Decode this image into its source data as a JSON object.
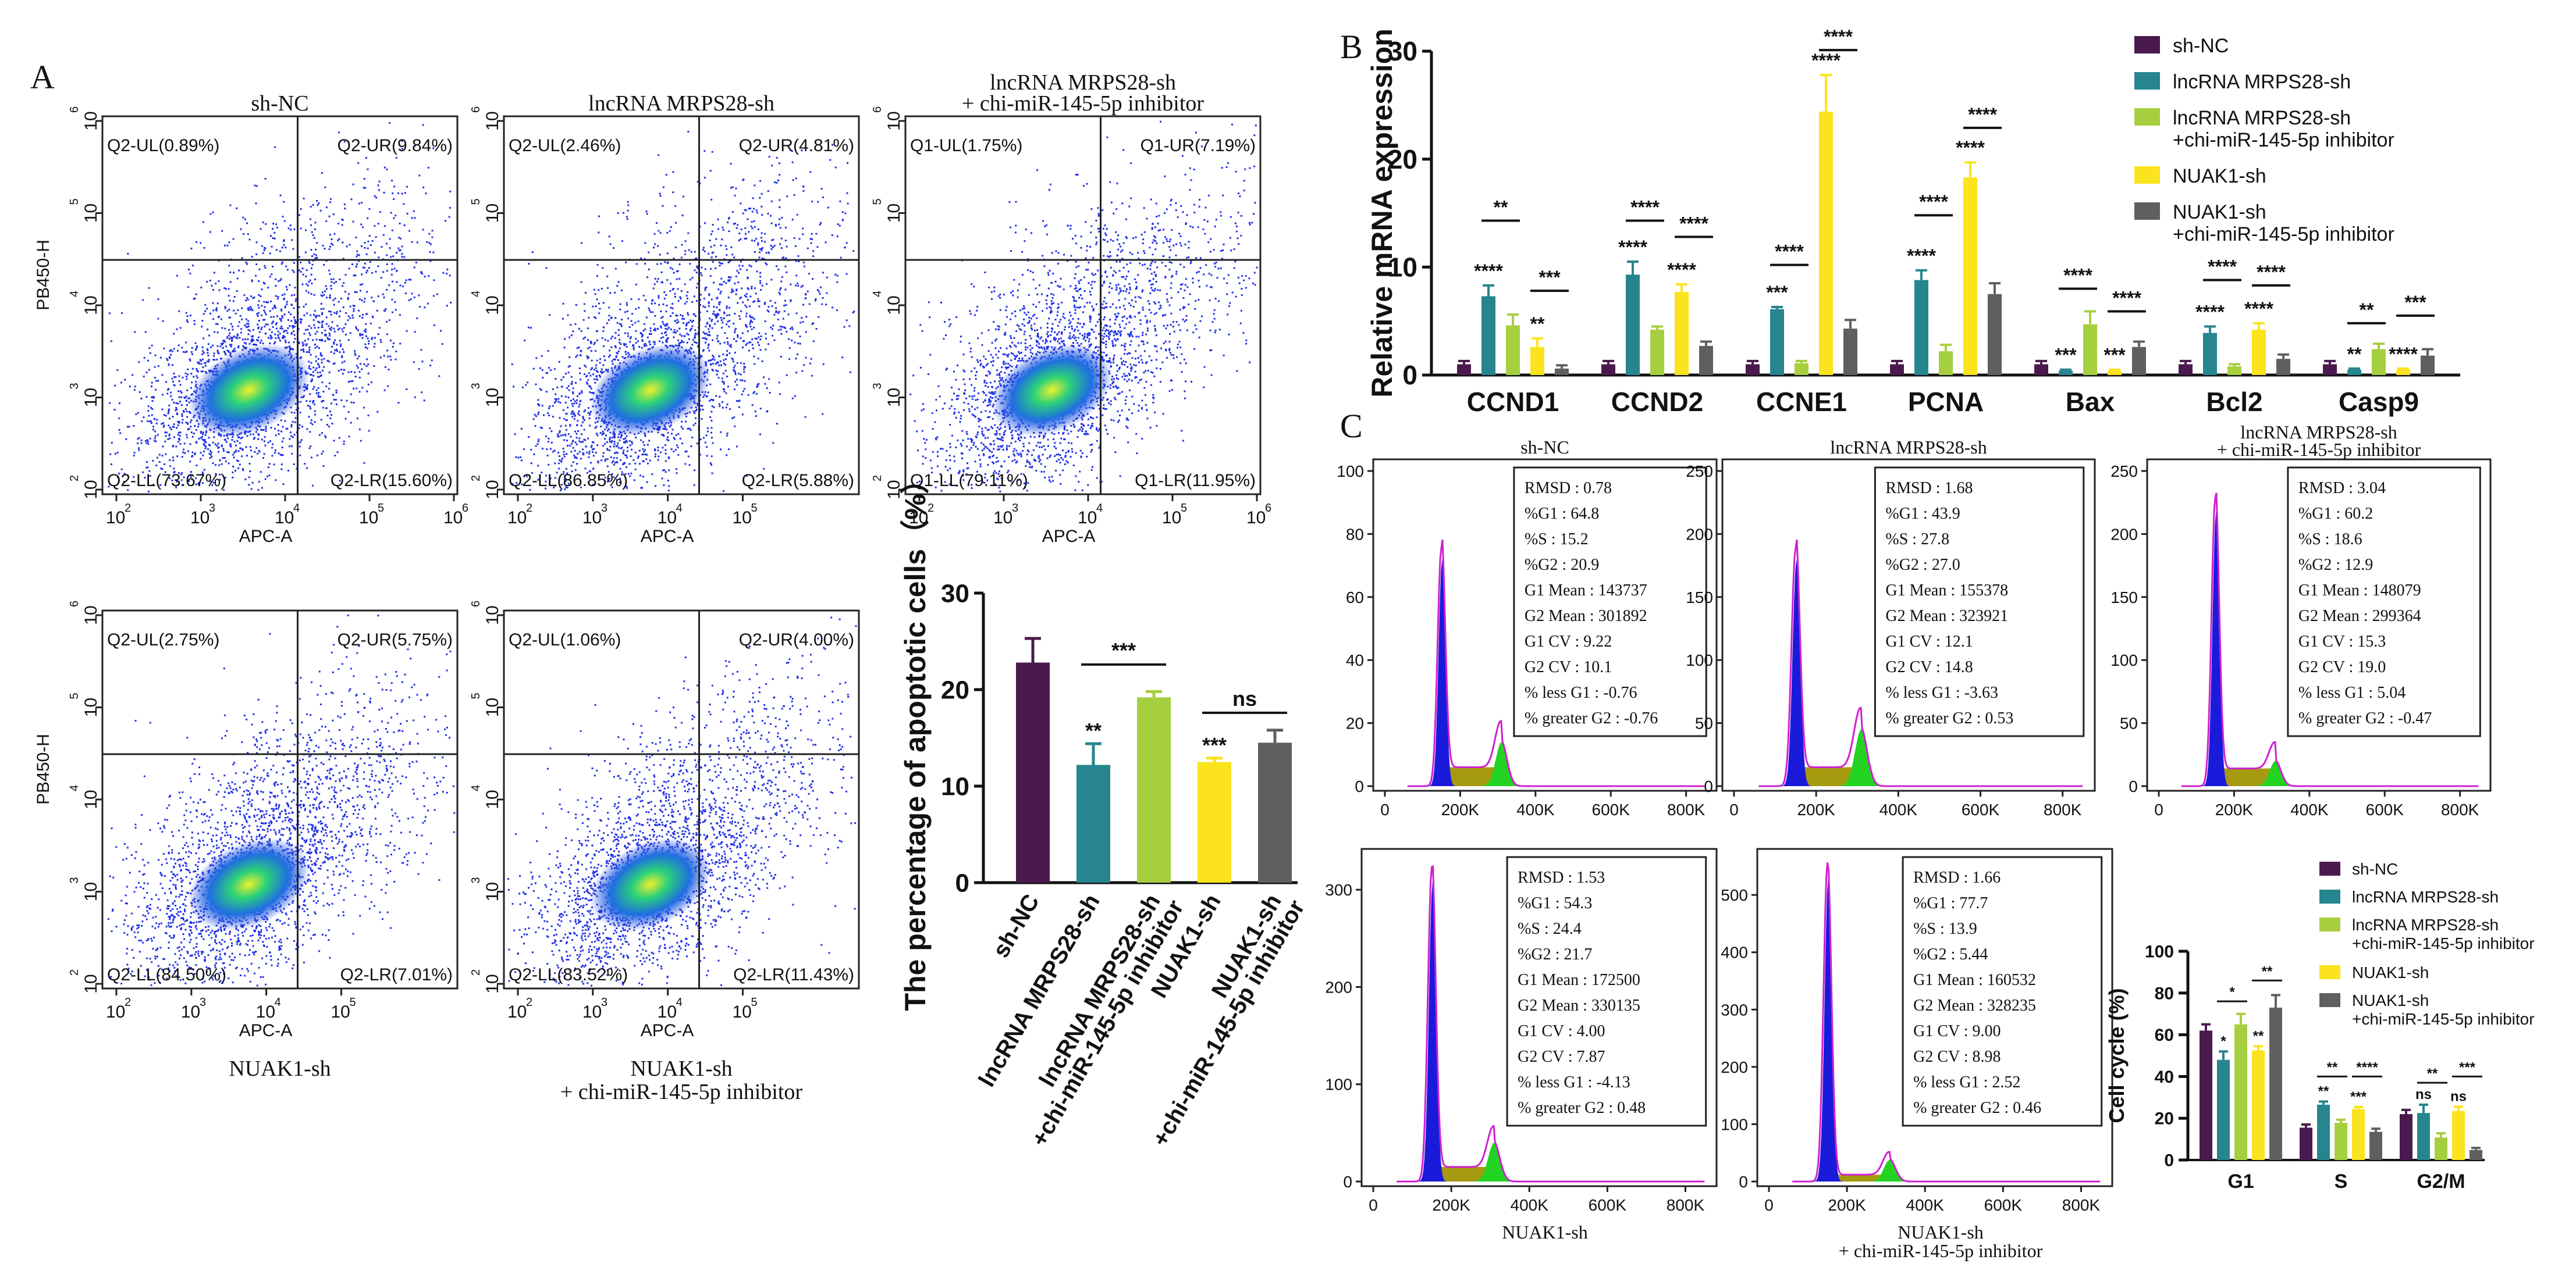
{
  "panel_letters": [
    "A",
    "B",
    "C"
  ],
  "colors": {
    "sh_NC": "#4a1a4e",
    "lnc": "#26858e",
    "lnc_inh": "#a6cf3f",
    "nuak": "#fbe31d",
    "nuak_inh": "#5f5f5f",
    "g1_fill": "#1a1adb",
    "g2_fill": "#22d322",
    "s_fill": "#a69b10"
  },
  "flow_plots": [
    {
      "title": "sh-NC",
      "title2": "",
      "bottom_title": "",
      "q": [
        "Q2-UL(0.89%)",
        "Q2-UR(9.84%)",
        "Q2-LL(73.67%)",
        "Q2-LR(15.60%)"
      ],
      "xticks": [
        "10",
        "10",
        "10",
        "10",
        "10"
      ],
      "xexp": [
        "2",
        "3",
        "4",
        "5",
        "6"
      ],
      "yticks": [
        "10",
        "10",
        "10",
        "10",
        "10"
      ],
      "yexp": [
        "6",
        "5",
        "4",
        "3",
        "2"
      ],
      "xlabel": "APC-A",
      "ylabel": "PB450-H"
    },
    {
      "title": "lncRNA MRPS28-sh",
      "title2": "",
      "bottom_title": "",
      "q": [
        "Q2-UL(2.46%)",
        "Q2-UR(4.81%)",
        "Q2-LL(86.85%)",
        "Q2-LR(5.88%)"
      ],
      "xticks": [
        "10",
        "10",
        "10",
        "10"
      ],
      "xexp": [
        "2",
        "3",
        "4",
        "5"
      ],
      "yticks": [
        "10",
        "10",
        "10",
        "10",
        "10"
      ],
      "yexp": [
        "6",
        "5",
        "4",
        "3",
        "2"
      ],
      "xlabel": "APC-A",
      "ylabel": ""
    },
    {
      "title": "lncRNA MRPS28-sh",
      "title2": "+ chi-miR-145-5p inhibitor",
      "bottom_title": "",
      "q": [
        "Q1-UL(1.75%)",
        "Q1-UR(7.19%)",
        "Q1-LL(79.11%)",
        "Q1-LR(11.95%)"
      ],
      "xticks": [
        "10",
        "10",
        "10",
        "10",
        "10"
      ],
      "xexp": [
        "2",
        "3",
        "4",
        "5",
        "6"
      ],
      "yticks": [
        "10",
        "10",
        "10",
        "10",
        "10"
      ],
      "yexp": [
        "6",
        "5",
        "4",
        "3",
        "2"
      ],
      "xlabel": "APC-A",
      "ylabel": ""
    },
    {
      "title": "",
      "title2": "",
      "bottom_title": "NUAK1-sh",
      "bottom_title2": "",
      "q": [
        "Q2-UL(2.75%)",
        "Q2-UR(5.75%)",
        "Q2-LL(84.50%)",
        "Q2-LR(7.01%)"
      ],
      "xticks": [
        "10",
        "10",
        "10",
        "10"
      ],
      "xexp": [
        "2",
        "3",
        "4",
        "5"
      ],
      "yticks": [
        "10",
        "10",
        "10",
        "10",
        "10"
      ],
      "yexp": [
        "6",
        "5",
        "4",
        "3",
        "2"
      ],
      "xlabel": "APC-A",
      "ylabel": "PB450-H"
    },
    {
      "title": "",
      "title2": "",
      "bottom_title": "NUAK1-sh",
      "bottom_title2": "+ chi-miR-145-5p inhibitor",
      "q": [
        "Q2-UL(1.06%)",
        "Q2-UR(4.00%)",
        "Q2-LL(83.52%)",
        "Q2-LR(11.43%)"
      ],
      "xticks": [
        "10",
        "10",
        "10",
        "10"
      ],
      "xexp": [
        "2",
        "3",
        "4",
        "5"
      ],
      "yticks": [
        "10",
        "10",
        "10",
        "10",
        "10"
      ],
      "yexp": [
        "6",
        "5",
        "4",
        "3",
        "2"
      ],
      "xlabel": "APC-A",
      "ylabel": ""
    }
  ],
  "chart_data": [
    {
      "id": "apoptosis",
      "type": "bar",
      "ylabel": "The percentage of apoptotic cells（%）",
      "ylim": [
        0,
        30
      ],
      "yticks": [
        0,
        10,
        20,
        30
      ],
      "categories": [
        "sh-NC",
        "lncRNA MRPS28-sh",
        "lncRNA MRPS28-sh",
        "NUAK1-sh",
        "NUAK1-sh"
      ],
      "categories_line2": [
        "",
        "",
        "+chi-miR-145-5p inhibitor",
        "",
        "+chi-miR-145-5p inhibitor"
      ],
      "values": [
        22.8,
        12.2,
        19.2,
        12.5,
        14.5
      ],
      "errors": [
        2.5,
        2.2,
        0.6,
        0.4,
        1.3
      ],
      "marks": [
        "",
        "**",
        "",
        "***",
        ""
      ],
      "comparisons": [
        {
          "from": 1,
          "to": 2,
          "label": "***"
        },
        {
          "from": 3,
          "to": 4,
          "label": "ns"
        }
      ]
    },
    {
      "id": "mrna",
      "type": "bar",
      "ylabel": "Relative mRNA expression",
      "ylim": [
        0,
        30
      ],
      "yticks": [
        0,
        10,
        20,
        30
      ],
      "categories": [
        "CCND1",
        "CCND2",
        "CCNE1",
        "PCNA",
        "Bax",
        "Bcl2",
        "Casp9"
      ],
      "legend": [
        "sh-NC",
        "lncRNA MRPS28-sh",
        "lncRNA MRPS28-sh",
        "NUAK1-sh",
        "NUAK1-sh"
      ],
      "legend_line2": [
        "",
        "",
        "+chi-miR-145-5p inhibitor",
        "",
        "+chi-miR-145-5p inhibitor"
      ],
      "series": [
        {
          "name": "sh-NC",
          "values": [
            1.0,
            1.0,
            1.0,
            1.0,
            1.0,
            1.0,
            1.0
          ],
          "errors": [
            0.3,
            0.3,
            0.3,
            0.3,
            0.3,
            0.3,
            0.3
          ],
          "marks": [
            "",
            "",
            "",
            "",
            "",
            "",
            ""
          ]
        },
        {
          "name": "lncRNA MRPS28-sh",
          "values": [
            7.3,
            9.3,
            6.1,
            8.8,
            0.4,
            3.9,
            0.5
          ],
          "errors": [
            1.0,
            1.2,
            0.2,
            0.9,
            0.1,
            0.6,
            0.1
          ],
          "marks": [
            "****",
            "****",
            "***",
            "****",
            "***",
            "****",
            "**"
          ]
        },
        {
          "name": "lncRNA MRPS28-sh +chi-miR-145-5p inhibitor",
          "values": [
            4.6,
            4.2,
            1.1,
            2.2,
            4.7,
            0.8,
            2.4
          ],
          "errors": [
            1.0,
            0.3,
            0.2,
            0.6,
            1.2,
            0.2,
            0.5
          ],
          "marks": [
            "",
            "",
            "",
            "",
            "",
            "",
            ""
          ]
        },
        {
          "name": "NUAK1-sh",
          "values": [
            2.6,
            7.7,
            24.4,
            18.3,
            0.4,
            4.2,
            0.5
          ],
          "errors": [
            0.8,
            0.7,
            3.4,
            1.4,
            0.1,
            0.6,
            0.1
          ],
          "marks": [
            "**",
            "****",
            "****",
            "****",
            "***",
            "****",
            "****"
          ]
        },
        {
          "name": "NUAK1-sh +chi-miR-145-5p inhibitor",
          "values": [
            0.6,
            2.7,
            4.3,
            7.5,
            2.6,
            1.5,
            1.8
          ],
          "errors": [
            0.3,
            0.4,
            0.8,
            1.0,
            0.5,
            0.4,
            0.6
          ],
          "marks": [
            "",
            "",
            "",
            "",
            "",
            "",
            ""
          ]
        }
      ],
      "comparisons": [
        {
          "cat": 0,
          "from": 1,
          "to": 2,
          "label": "**",
          "y": 14.3
        },
        {
          "cat": 0,
          "from": 3,
          "to": 4,
          "label": "***",
          "y": 7.8
        },
        {
          "cat": 1,
          "from": 1,
          "to": 2,
          "label": "****",
          "y": 14.3
        },
        {
          "cat": 1,
          "from": 3,
          "to": 4,
          "label": "****",
          "y": 12.8
        },
        {
          "cat": 2,
          "from": 1,
          "to": 2,
          "label": "****",
          "y": 10.2
        },
        {
          "cat": 2,
          "from": 3,
          "to": 4,
          "label": "****",
          "y": 30.1
        },
        {
          "cat": 3,
          "from": 1,
          "to": 2,
          "label": "****",
          "y": 14.8
        },
        {
          "cat": 3,
          "from": 3,
          "to": 4,
          "label": "****",
          "y": 22.9
        },
        {
          "cat": 4,
          "from": 1,
          "to": 2,
          "label": "****",
          "y": 8.0
        },
        {
          "cat": 4,
          "from": 3,
          "to": 4,
          "label": "****",
          "y": 5.9
        },
        {
          "cat": 5,
          "from": 1,
          "to": 2,
          "label": "****",
          "y": 8.8
        },
        {
          "cat": 5,
          "from": 3,
          "to": 4,
          "label": "****",
          "y": 8.3
        },
        {
          "cat": 6,
          "from": 1,
          "to": 2,
          "label": "**",
          "y": 4.8
        },
        {
          "cat": 6,
          "from": 3,
          "to": 4,
          "label": "***",
          "y": 5.5
        }
      ]
    },
    {
      "id": "cellcycle",
      "type": "bar",
      "ylabel": "Cell cycle (%)",
      "ylim": [
        0,
        100
      ],
      "yticks": [
        0,
        20,
        40,
        60,
        80,
        100
      ],
      "categories": [
        "G1",
        "S",
        "G2/M"
      ],
      "legend": [
        "sh-NC",
        "lncRNA MRPS28-sh",
        "lncRNA MRPS28-sh",
        "NUAK1-sh",
        "NUAK1-sh"
      ],
      "legend_line2": [
        "",
        "",
        "+chi-miR-145-5p inhibitor",
        "",
        "+chi-miR-145-5p inhibitor"
      ],
      "series": [
        {
          "name": "sh-NC",
          "values": [
            62,
            15.5,
            22
          ],
          "errors": [
            3,
            1.5,
            2
          ],
          "marks": [
            "",
            "",
            ""
          ]
        },
        {
          "name": "lncRNA MRPS28-sh",
          "values": [
            48,
            26.5,
            22.5
          ],
          "errors": [
            4,
            1.5,
            4
          ],
          "marks": [
            "*",
            "**",
            "ns"
          ]
        },
        {
          "name": "lncRNA MRPS28-sh +chi-miR-145-5p inhibitor",
          "values": [
            65,
            17.8,
            10.8
          ],
          "errors": [
            5,
            1.5,
            2
          ],
          "marks": [
            "",
            "",
            ""
          ]
        },
        {
          "name": "NUAK1-sh",
          "values": [
            52.5,
            24.4,
            23.5
          ],
          "errors": [
            2,
            1,
            2
          ],
          "marks": [
            "**",
            "***",
            "ns"
          ]
        },
        {
          "name": "NUAK1-sh +chi-miR-145-5p inhibitor",
          "values": [
            73,
            13.5,
            4.8
          ],
          "errors": [
            6,
            1.5,
            1
          ],
          "marks": [
            "",
            "",
            ""
          ]
        }
      ],
      "comparisons": [
        {
          "cat": 0,
          "from": 1,
          "to": 2,
          "label": "*",
          "y": 76
        },
        {
          "cat": 0,
          "from": 3,
          "to": 4,
          "label": "**",
          "y": 86
        },
        {
          "cat": 1,
          "from": 1,
          "to": 2,
          "label": "**",
          "y": 40
        },
        {
          "cat": 1,
          "from": 3,
          "to": 4,
          "label": "****",
          "y": 40
        },
        {
          "cat": 2,
          "from": 1,
          "to": 2,
          "label": "**",
          "y": 37
        },
        {
          "cat": 2,
          "from": 3,
          "to": 4,
          "label": "***",
          "y": 40
        }
      ]
    }
  ],
  "histograms": [
    {
      "title": "sh-NC",
      "title2": "",
      "bottom_title": "",
      "bottom_title2": "",
      "yticks": [
        "100",
        "80",
        "60",
        "40",
        "20",
        "0"
      ],
      "ymax": 100,
      "xticks": [
        "0",
        "200K",
        "400K",
        "600K",
        "800K"
      ],
      "stats": [
        "RMSD : 0.78",
        "%G1  : 64.8",
        "%S  : 15.2",
        "%G2  : 20.9",
        "G1 Mean : 143737",
        "G2 Mean : 301892",
        "G1 CV : 9.22",
        "G2 CV : 10.1",
        "% less G1  : -0.76",
        "% greater G2  : -0.76"
      ],
      "g1_peak": 72,
      "s_level": 6,
      "g2_peak": 14
    },
    {
      "title": "lncRNA MRPS28-sh",
      "title2": "",
      "bottom_title": "",
      "bottom_title2": "",
      "yticks": [
        "250",
        "200",
        "150",
        "100",
        "50",
        "0"
      ],
      "ymax": 250,
      "xticks": [
        "0",
        "200K",
        "400K",
        "600K",
        "800K"
      ],
      "stats": [
        "RMSD : 1.68",
        "%G1  : 43.9",
        "%S  : 27.8",
        "%G2  : 27.0",
        "G1 Mean : 155378",
        "G2 Mean : 323921",
        "G1 CV : 12.1",
        "G2 CV : 14.8",
        "% less G1  : -3.63",
        "% greater G2  : 0.53"
      ],
      "g1_peak": 180,
      "s_level": 15,
      "g2_peak": 45
    },
    {
      "title": "lncRNA MRPS28-sh",
      "title2": "+ chi-miR-145-5p inhibitor",
      "bottom_title": "",
      "bottom_title2": "",
      "yticks": [
        "250",
        "200",
        "150",
        "100",
        "50",
        "0"
      ],
      "ymax": 250,
      "xticks": [
        "0",
        "200K",
        "400K",
        "600K",
        "800K"
      ],
      "stats": [
        "RMSD : 3.04",
        "%G1  : 60.2",
        "%S  : 18.6",
        "%G2  : 12.9",
        "G1 Mean : 148079",
        "G2 Mean : 299364",
        "G1 CV : 15.3",
        "G2 CV : 19.0",
        "% less G1  : 5.04",
        "% greater G2  : -0.47"
      ],
      "g1_peak": 218,
      "s_level": 14,
      "g2_peak": 20
    },
    {
      "title": "",
      "title2": "",
      "bottom_title": "NUAK1-sh",
      "bottom_title2": "",
      "yticks": [
        "300",
        "200",
        "100",
        "0"
      ],
      "ymax": 330,
      "xticks": [
        "0",
        "200K",
        "400K",
        "600K",
        "800K"
      ],
      "stats": [
        "RMSD : 1.53",
        "%G1  : 54.3",
        "%S  : 24.4",
        "%G2  : 21.7",
        "G1 Mean : 172500",
        "G2 Mean : 330135",
        "G1 CV : 4.00",
        "G2 CV : 7.87",
        "% less G1  : -4.13",
        "% greater G2  : 0.48"
      ],
      "g1_peak": 308,
      "s_level": 15,
      "g2_peak": 40
    },
    {
      "title": "",
      "title2": "",
      "bottom_title": "NUAK1-sh",
      "bottom_title2": "+ chi-miR-145-5p inhibitor",
      "yticks": [
        "500",
        "400",
        "300",
        "200",
        "100",
        "0"
      ],
      "ymax": 560,
      "xticks": [
        "0",
        "200K",
        "400K",
        "600K",
        "800K"
      ],
      "stats": [
        "RMSD : 1.66",
        "%G1  : 77.7",
        "%S  : 13.9",
        "%G2  : 5.44",
        "G1 Mean : 160532",
        "G2 Mean : 328235",
        "G1 CV : 9.00",
        "G2 CV : 8.98",
        "% less G1  : 2.52",
        "% greater G2  : 0.46"
      ],
      "g1_peak": 530,
      "s_level": 12,
      "g2_peak": 38
    }
  ]
}
